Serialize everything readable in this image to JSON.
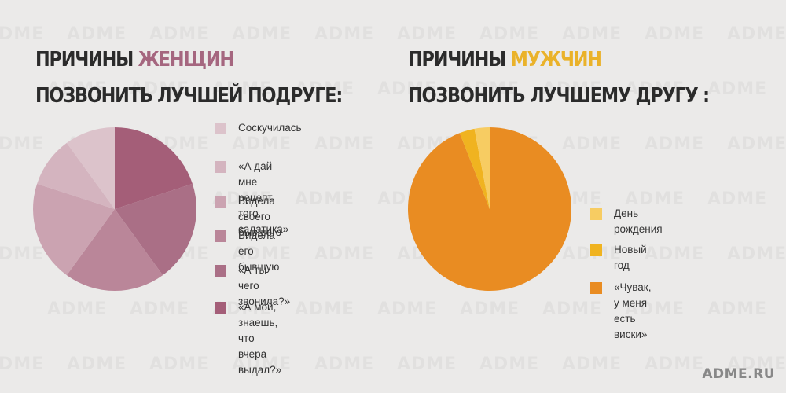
{
  "watermark_text": "ADME",
  "footer": {
    "site": "ADME.RU"
  },
  "women": {
    "title_line1_prefix": "ПРИЧИНЫ ",
    "title_line1_accent": "ЖЕНЩИН",
    "title_line2": "ПОЗВОНИТЬ ЛУЧШЕЙ ПОДРУГЕ:",
    "accent_color": "#a5667f",
    "legend": [
      {
        "label": "Соскучилась",
        "color": "#dcc3cb"
      },
      {
        "label": "«А дай мне рецепт\nтого салатика»",
        "color": "#d4b4bf"
      },
      {
        "label": "Видела своего бывшего",
        "color": "#cba3b1"
      },
      {
        "label": "Видела его бывшую",
        "color": "#ba8699"
      },
      {
        "label": "«А ты чего звонила?»",
        "color": "#aa6f86"
      },
      {
        "label": "«А мой, знаешь,\nчто вчера выдал?»",
        "color": "#a45e78"
      }
    ]
  },
  "men": {
    "title_line1_prefix": "ПРИЧИНЫ ",
    "title_line1_accent": "МУЖЧИН",
    "title_line2": "ПОЗВОНИТЬ ЛУЧШЕМУ ДРУГУ :",
    "accent_color": "#eab22a",
    "legend": [
      {
        "label": "День рождения",
        "color": "#f7cc62"
      },
      {
        "label": "Новый год",
        "color": "#f0b320"
      },
      {
        "label": "«Чувак, у меня есть виски»",
        "color": "#e98c22"
      }
    ]
  },
  "chart_data": [
    {
      "type": "pie",
      "title": "ПРИЧИНЫ ЖЕНЩИН ПОЗВОНИТЬ ЛУЧШЕЙ ПОДРУГЕ:",
      "categories": [
        "«А мой, знаешь, что вчера выдал?»",
        "«А ты чего звонила?»",
        "Видела его бывшую",
        "Видела своего бывшего",
        "«А дай мне рецепт того салатика»",
        "Соскучилась"
      ],
      "values": [
        20,
        20,
        20,
        20,
        10,
        10
      ],
      "colors": [
        "#a45e78",
        "#aa6f86",
        "#ba8699",
        "#cba3b1",
        "#d4b4bf",
        "#dcc3cb"
      ],
      "start_angle_deg": 0,
      "direction": "clockwise",
      "legend_position": "right"
    },
    {
      "type": "pie",
      "title": "ПРИЧИНЫ МУЖЧИН ПОЗВОНИТЬ ЛУЧШЕМУ ДРУГУ :",
      "categories": [
        "«Чувак, у меня есть виски»",
        "Новый год",
        "День рождения"
      ],
      "values": [
        94,
        3,
        3
      ],
      "colors": [
        "#e98c22",
        "#f0b320",
        "#f7cc62"
      ],
      "start_angle_deg": 0,
      "direction": "clockwise",
      "legend_position": "right"
    }
  ]
}
